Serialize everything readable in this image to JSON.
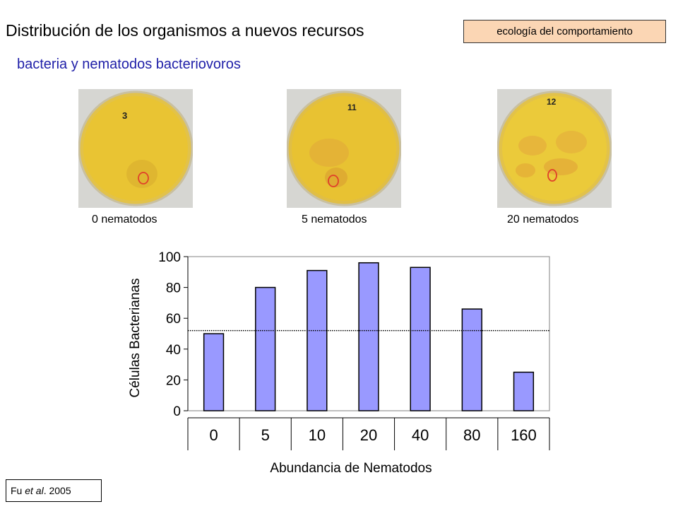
{
  "header": {
    "title": "Distribución de los organismos a nuevos recursos",
    "subtitle": "bacteria y nematodos bacteriovoros",
    "tag": "ecología del comportamiento"
  },
  "plates": [
    {
      "label": "0 nematodos",
      "marker": "3"
    },
    {
      "label": "5 nematodos",
      "marker": "11"
    },
    {
      "label": "20 nematodos",
      "marker": "12"
    }
  ],
  "citation": {
    "prefix": "Fu ",
    "italic": "et al",
    "suffix": ". 2005"
  },
  "chart_data": {
    "type": "bar",
    "categories": [
      "0",
      "5",
      "10",
      "20",
      "40",
      "80",
      "160"
    ],
    "values": [
      50,
      80,
      91,
      96,
      93,
      66,
      25
    ],
    "xlabel": "Abundancia de Nematodos",
    "ylabel": "Células Bacterianas",
    "ylim": [
      0,
      100
    ],
    "yticks": [
      0,
      20,
      40,
      60,
      80,
      100
    ],
    "reference_line": 52,
    "bar_color": "#9999ff",
    "grid": false
  }
}
